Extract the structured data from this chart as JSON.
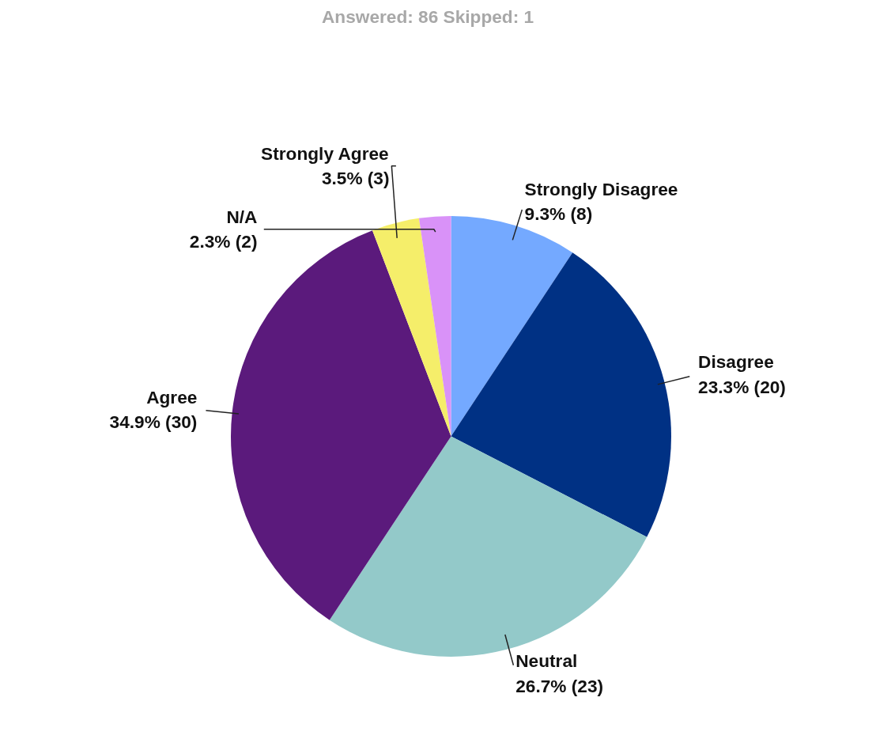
{
  "chart_data": {
    "type": "pie",
    "title": "Answered: 86    Skipped: 1",
    "categories": [
      "Strongly Disagree",
      "Disagree",
      "Neutral",
      "Agree",
      "Strongly Agree",
      "N/A"
    ],
    "values": [
      8,
      20,
      23,
      30,
      3,
      2
    ],
    "value_labels": [
      "9.3% (8)",
      "23.3% (20)",
      "26.7% (23)",
      "34.9% (30)",
      "3.5% (3)",
      "2.3% (2)"
    ],
    "colors": [
      "#74a9ff",
      "#003184",
      "#93c9c9",
      "#5b1a7c",
      "#f5ee6a",
      "#d992f8"
    ]
  }
}
